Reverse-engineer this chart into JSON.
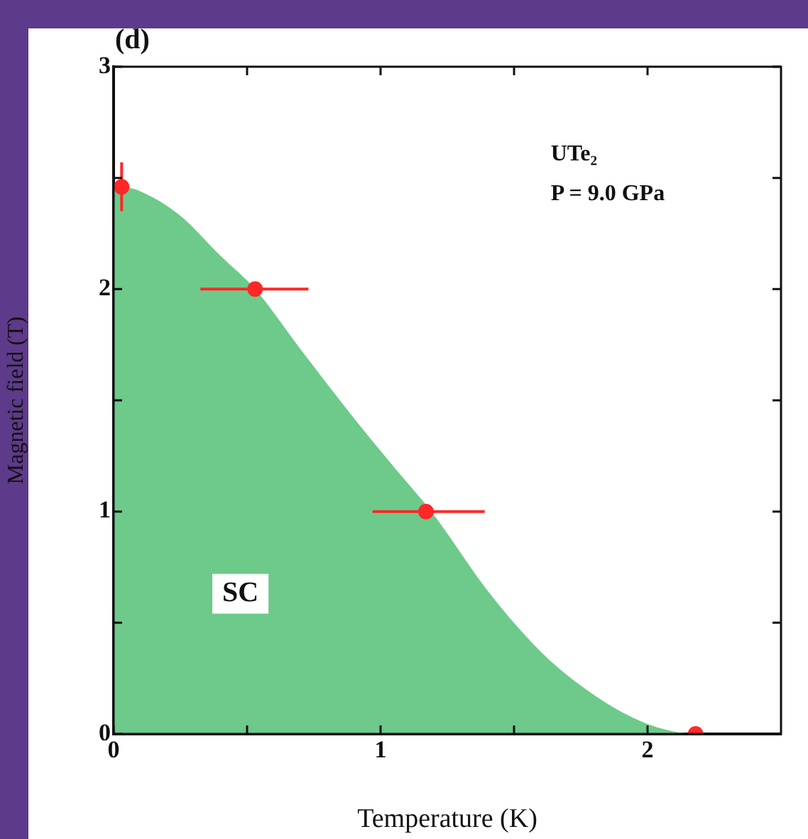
{
  "chart_data": {
    "type": "scatter",
    "xlabel": "Temperature (K)",
    "ylabel": "Magnetic field (T)",
    "xlim": [
      0,
      2.5
    ],
    "xticks": [
      0,
      {
        "value": 0.5,
        "label": null
      },
      1,
      {
        "value": 1.5,
        "label": null
      },
      2
    ],
    "ylim": [
      0,
      3
    ],
    "yticks": [
      0,
      {
        "value": 0.5,
        "label": null
      },
      1,
      {
        "value": 1.5,
        "label": null
      },
      2,
      {
        "value": 2.5,
        "label": null
      },
      3
    ],
    "grid": false,
    "legend": false,
    "marker": "circle",
    "annotations": [
      "(d)",
      "UTe₂",
      "P = 9.0 GPa",
      "SC"
    ],
    "series": [
      {
        "type": "area",
        "marker": "none",
        "color": "#6dca8a",
        "x": [
          0,
          0.1,
          0.25,
          0.4,
          0.53,
          0.7,
          0.92,
          1.05,
          1.19,
          1.41,
          1.6,
          1.77,
          1.95,
          2.1,
          2.18
        ],
        "values": [
          2.47,
          2.44,
          2.33,
          2.15,
          2.0,
          1.73,
          1.39,
          1.2,
          1.0,
          0.63,
          0.37,
          0.2,
          0.07,
          0.01,
          0
        ]
      },
      {
        "type": "scatter",
        "color": "#ff2828",
        "x": [
          0.03,
          0.53,
          1.17,
          2.18
        ],
        "values": [
          2.46,
          2.0,
          1.0,
          0
        ],
        "errors": [
          0.11,
          null,
          null,
          null
        ],
        "xerrors": [
          null,
          [
            0.325,
            0.73
          ],
          [
            0.97,
            1.39
          ],
          null
        ]
      }
    ]
  }
}
